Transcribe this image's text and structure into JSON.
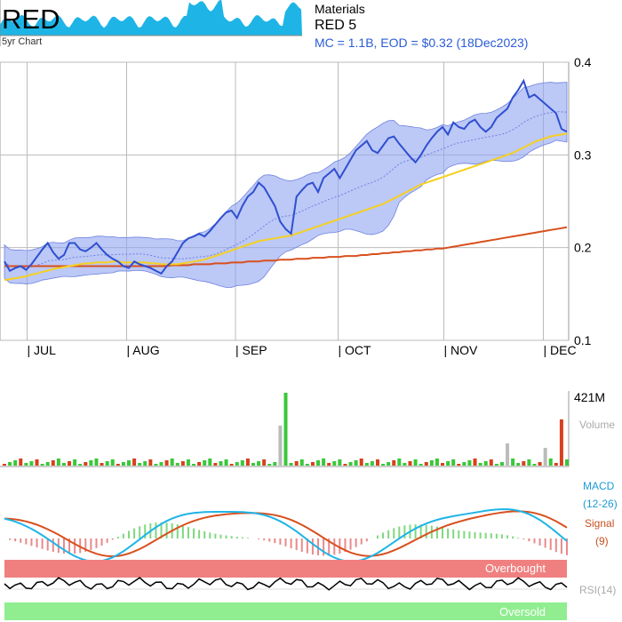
{
  "header": {
    "ticker": "RED",
    "mini_chart_label": "5yr Chart",
    "sector": "Materials",
    "name": "RED 5",
    "info": "MC = 1.1B, EOD = $0.32 (18Dec2023)"
  },
  "labels": {
    "volume_max": "421M",
    "volume": "Volume",
    "macd": "MACD",
    "macd_params": "(12-26)",
    "signal": "Signal",
    "signal_params": "(9)",
    "overbought": "Overbought",
    "rsi": "RSI(14)",
    "oversold": "Oversold"
  },
  "colors": {
    "price": "#2f4fd0",
    "band": "#8fa3f0",
    "ma_short": "#f5d020",
    "ma_long": "#d8501e",
    "macd": "#1eb4e6",
    "signal": "#d8501e",
    "vol_up": "#39c839",
    "vol_down": "#d8401e",
    "overbought": "#f08080",
    "oversold": "#90ee90"
  },
  "chart_data": {
    "type": "line",
    "y_ticks": [
      "0.1",
      "0.2",
      "0.3",
      "0.4"
    ],
    "ylim": [
      0.1,
      0.4
    ],
    "months": [
      "JUL",
      "AUG",
      "SEP",
      "OCT",
      "NOV",
      "DEC"
    ],
    "month_positions": [
      0.075,
      0.235,
      0.41,
      0.575,
      0.745,
      0.905
    ],
    "price": [
      0.185,
      0.175,
      0.178,
      0.18,
      0.176,
      0.182,
      0.19,
      0.198,
      0.205,
      0.195,
      0.188,
      0.192,
      0.205,
      0.205,
      0.198,
      0.196,
      0.2,
      0.205,
      0.198,
      0.192,
      0.188,
      0.185,
      0.18,
      0.178,
      0.185,
      0.182,
      0.18,
      0.178,
      0.175,
      0.172,
      0.18,
      0.185,
      0.195,
      0.205,
      0.21,
      0.212,
      0.215,
      0.212,
      0.218,
      0.225,
      0.232,
      0.238,
      0.24,
      0.232,
      0.245,
      0.255,
      0.26,
      0.27,
      0.265,
      0.255,
      0.245,
      0.228,
      0.22,
      0.215,
      0.255,
      0.262,
      0.268,
      0.27,
      0.26,
      0.275,
      0.28,
      0.285,
      0.275,
      0.285,
      0.295,
      0.305,
      0.31,
      0.315,
      0.305,
      0.302,
      0.31,
      0.318,
      0.32,
      0.312,
      0.305,
      0.298,
      0.292,
      0.3,
      0.31,
      0.318,
      0.325,
      0.33,
      0.322,
      0.335,
      0.33,
      0.328,
      0.335,
      0.338,
      0.33,
      0.325,
      0.33,
      0.34,
      0.345,
      0.35,
      0.362,
      0.37,
      0.38,
      0.362,
      0.365,
      0.36,
      0.355,
      0.35,
      0.345,
      0.328,
      0.325
    ],
    "ma_short": [
      0.165,
      0.166,
      0.167,
      0.168,
      0.169,
      0.171,
      0.172,
      0.174,
      0.175,
      0.177,
      0.178,
      0.179,
      0.18,
      0.181,
      0.182,
      0.183,
      0.183,
      0.184,
      0.184,
      0.184,
      0.185,
      0.185,
      0.184,
      0.184,
      0.184,
      0.184,
      0.184,
      0.183,
      0.183,
      0.182,
      0.182,
      0.182,
      0.182,
      0.183,
      0.184,
      0.185,
      0.186,
      0.187,
      0.189,
      0.191,
      0.193,
      0.195,
      0.197,
      0.199,
      0.201,
      0.203,
      0.205,
      0.207,
      0.208,
      0.209,
      0.21,
      0.211,
      0.212,
      0.213,
      0.215,
      0.217,
      0.219,
      0.221,
      0.223,
      0.225,
      0.227,
      0.229,
      0.231,
      0.233,
      0.235,
      0.237,
      0.239,
      0.241,
      0.243,
      0.245,
      0.247,
      0.25,
      0.253,
      0.256,
      0.259,
      0.262,
      0.265,
      0.268,
      0.27,
      0.272,
      0.274,
      0.276,
      0.278,
      0.28,
      0.282,
      0.284,
      0.286,
      0.288,
      0.29,
      0.292,
      0.294,
      0.296,
      0.298,
      0.3,
      0.302,
      0.305,
      0.308,
      0.311,
      0.314,
      0.316,
      0.318,
      0.32,
      0.321,
      0.322,
      0.323
    ],
    "ma_long": [
      0.18,
      0.18,
      0.18,
      0.18,
      0.18,
      0.18,
      0.18,
      0.18,
      0.18,
      0.18,
      0.18,
      0.18,
      0.18,
      0.18,
      0.18,
      0.18,
      0.18,
      0.18,
      0.18,
      0.18,
      0.18,
      0.18,
      0.18,
      0.18,
      0.18,
      0.18,
      0.18,
      0.18,
      0.18,
      0.18,
      0.18,
      0.181,
      0.181,
      0.181,
      0.181,
      0.182,
      0.182,
      0.182,
      0.182,
      0.183,
      0.183,
      0.183,
      0.184,
      0.184,
      0.184,
      0.185,
      0.185,
      0.185,
      0.186,
      0.186,
      0.186,
      0.187,
      0.187,
      0.187,
      0.188,
      0.188,
      0.188,
      0.189,
      0.189,
      0.189,
      0.19,
      0.19,
      0.19,
      0.191,
      0.191,
      0.191,
      0.192,
      0.192,
      0.193,
      0.193,
      0.194,
      0.194,
      0.195,
      0.195,
      0.196,
      0.196,
      0.197,
      0.197,
      0.198,
      0.198,
      0.199,
      0.199,
      0.2,
      0.201,
      0.202,
      0.203,
      0.204,
      0.205,
      0.206,
      0.207,
      0.208,
      0.209,
      0.21,
      0.211,
      0.212,
      0.213,
      0.214,
      0.215,
      0.216,
      0.217,
      0.218,
      0.219,
      0.22,
      0.221,
      0.222
    ]
  }
}
